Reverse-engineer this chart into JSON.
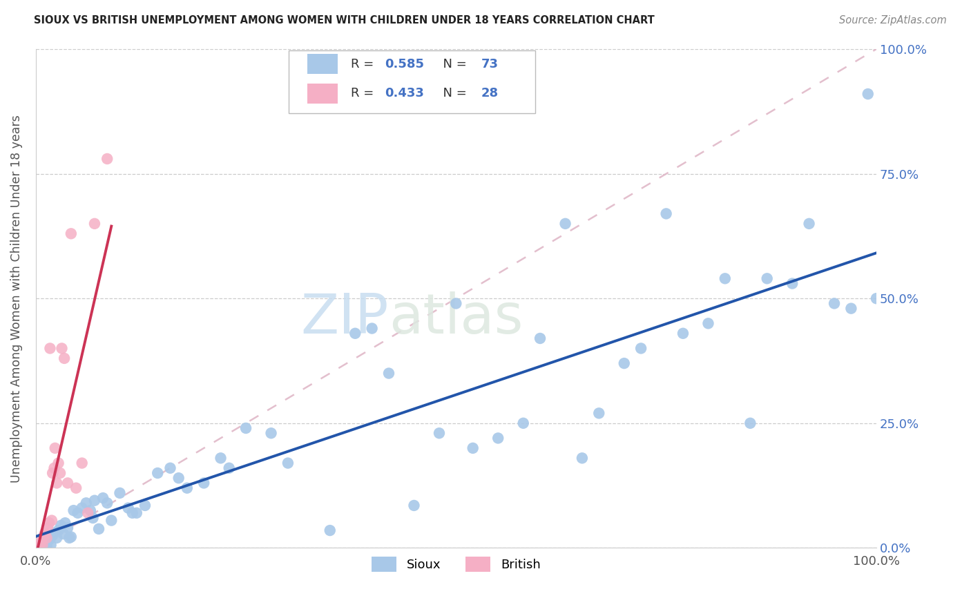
{
  "title": "SIOUX VS BRITISH UNEMPLOYMENT AMONG WOMEN WITH CHILDREN UNDER 18 YEARS CORRELATION CHART",
  "source": "Source: ZipAtlas.com",
  "ylabel": "Unemployment Among Women with Children Under 18 years",
  "sioux_color": "#a8c8e8",
  "british_color": "#f5afc5",
  "sioux_line_color": "#2255aa",
  "british_line_color": "#cc3355",
  "diag_color": "#e0b8c8",
  "watermark_zip": "ZIP",
  "watermark_atlas": "atlas",
  "watermark_color": "#dde8f0",
  "sioux_R": "0.585",
  "sioux_N": "73",
  "british_R": "0.433",
  "british_N": "28",
  "label_color": "#4472c4",
  "grid_color": "#cccccc",
  "sioux_x": [
    0.5,
    0.6,
    0.8,
    1.0,
    1.2,
    1.3,
    1.5,
    1.7,
    1.8,
    2.0,
    2.2,
    2.5,
    2.7,
    3.0,
    3.3,
    3.5,
    3.8,
    4.2,
    4.5,
    5.0,
    5.5,
    6.0,
    6.5,
    7.0,
    7.5,
    8.0,
    9.0,
    10.0,
    11.0,
    12.0,
    13.0,
    14.5,
    16.0,
    18.0,
    20.0,
    22.0,
    25.0,
    28.0,
    30.0,
    35.0,
    38.0,
    40.0,
    42.0,
    45.0,
    48.0,
    50.0,
    52.0,
    55.0,
    58.0,
    60.0,
    63.0,
    65.0,
    67.0,
    70.0,
    72.0,
    75.0,
    77.0,
    80.0,
    82.0,
    85.0,
    87.0,
    90.0,
    92.0,
    95.0,
    97.0,
    99.0,
    100.0,
    4.0,
    6.8,
    8.5,
    11.5,
    17.0,
    23.0
  ],
  "sioux_y": [
    0.5,
    0.3,
    0.8,
    0.5,
    1.0,
    0.4,
    1.5,
    1.8,
    0.6,
    2.5,
    3.0,
    2.0,
    3.5,
    4.5,
    2.8,
    5.0,
    4.0,
    2.2,
    7.5,
    7.0,
    8.0,
    9.0,
    7.5,
    9.5,
    3.8,
    10.0,
    5.5,
    11.0,
    8.0,
    7.0,
    8.5,
    15.0,
    16.0,
    12.0,
    13.0,
    18.0,
    24.0,
    23.0,
    17.0,
    3.5,
    43.0,
    44.0,
    35.0,
    8.5,
    23.0,
    49.0,
    20.0,
    22.0,
    25.0,
    42.0,
    65.0,
    18.0,
    27.0,
    37.0,
    40.0,
    67.0,
    43.0,
    45.0,
    54.0,
    25.0,
    54.0,
    53.0,
    65.0,
    49.0,
    48.0,
    91.0,
    50.0,
    2.0,
    6.0,
    9.0,
    7.0,
    14.0,
    16.0
  ],
  "british_x": [
    0.2,
    0.3,
    0.5,
    0.6,
    0.7,
    0.8,
    1.0,
    1.1,
    1.3,
    1.4,
    1.6,
    1.7,
    1.9,
    2.0,
    2.2,
    2.3,
    2.5,
    2.7,
    2.9,
    3.1,
    3.4,
    3.8,
    4.2,
    4.8,
    5.5,
    6.2,
    7.0,
    8.5
  ],
  "british_y": [
    0.3,
    0.5,
    0.8,
    1.0,
    1.5,
    0.6,
    2.5,
    3.0,
    2.0,
    4.0,
    5.0,
    40.0,
    5.5,
    15.0,
    16.0,
    20.0,
    13.0,
    17.0,
    15.0,
    40.0,
    38.0,
    13.0,
    63.0,
    12.0,
    17.0,
    7.0,
    65.0,
    78.0
  ]
}
